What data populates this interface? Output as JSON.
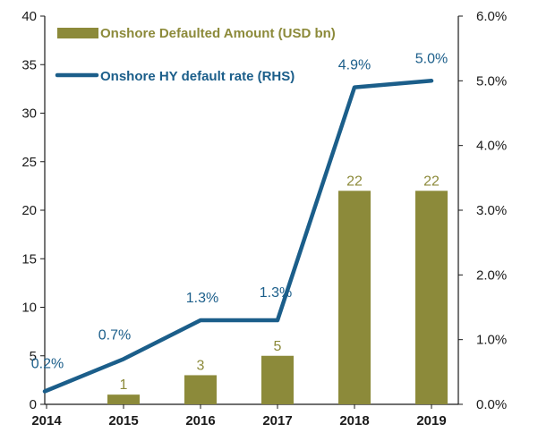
{
  "chart_data": {
    "type": "bar+line",
    "categories": [
      "2014",
      "2015",
      "2016",
      "2017",
      "2018",
      "2019"
    ],
    "series": [
      {
        "name": "Onshore Defaulted Amount (USD bn)",
        "type": "bar",
        "axis": "left",
        "values": [
          0,
          1,
          3,
          5,
          22,
          22
        ],
        "labels": [
          "",
          "1",
          "3",
          "5",
          "22",
          "22"
        ],
        "color": "#8c8a3a"
      },
      {
        "name": "Onshore HY default rate (RHS)",
        "type": "line",
        "axis": "right",
        "values": [
          0.2,
          0.7,
          1.3,
          1.3,
          4.9,
          5.0
        ],
        "labels": [
          "0.2%",
          "0.7%",
          "1.3%",
          "1.3%",
          "4.9%",
          "5.0%"
        ],
        "color": "#1b5e8a"
      }
    ],
    "y_left": {
      "range": [
        0,
        40
      ],
      "ticks": [
        "0",
        "5",
        "10",
        "15",
        "20",
        "25",
        "30",
        "35",
        "40"
      ]
    },
    "y_right": {
      "range": [
        0,
        6
      ],
      "ticks": [
        "0.0%",
        "1.0%",
        "2.0%",
        "3.0%",
        "4.0%",
        "5.0%",
        "6.0%"
      ]
    },
    "legend": {
      "position": "top-left"
    },
    "grid": false,
    "title": "",
    "xlabel": "",
    "ylabel": ""
  }
}
